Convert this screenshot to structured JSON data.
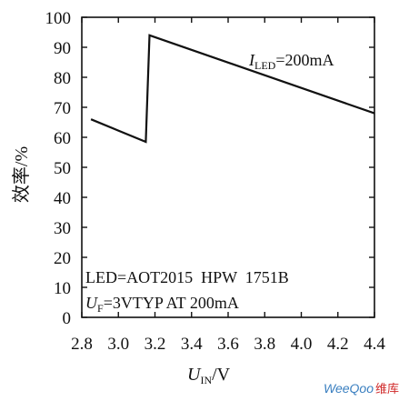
{
  "chart_data": {
    "type": "line",
    "xlabel": {
      "symbol": "U",
      "sub": "IN",
      "unit": "/V"
    },
    "ylabel": "效率/%",
    "xlim": [
      2.8,
      4.4
    ],
    "ylim": [
      0,
      100
    ],
    "xticks": [
      "2.8",
      "3.0",
      "3.2",
      "3.4",
      "3.6",
      "3.8",
      "4.0",
      "4.2",
      "4.4"
    ],
    "yticks": [
      "0",
      "10",
      "20",
      "30",
      "40",
      "50",
      "60",
      "70",
      "80",
      "90",
      "100"
    ],
    "series": [
      {
        "x": [
          2.85,
          3.15,
          3.15,
          3.17,
          4.4
        ],
        "y": [
          66,
          58.5,
          58.5,
          94,
          68
        ]
      }
    ],
    "annotations": {
      "current": {
        "symbol": "I",
        "sub": "LED",
        "text": "=200mA"
      },
      "led": "LED=AOT2015  HPW  1751B",
      "uf": {
        "symbol": "U",
        "sub": "F",
        "text": "=3VTYP AT 200mA"
      }
    },
    "grid": false
  },
  "watermark": {
    "brand": "WeeQoo",
    "suffix": "维库"
  }
}
